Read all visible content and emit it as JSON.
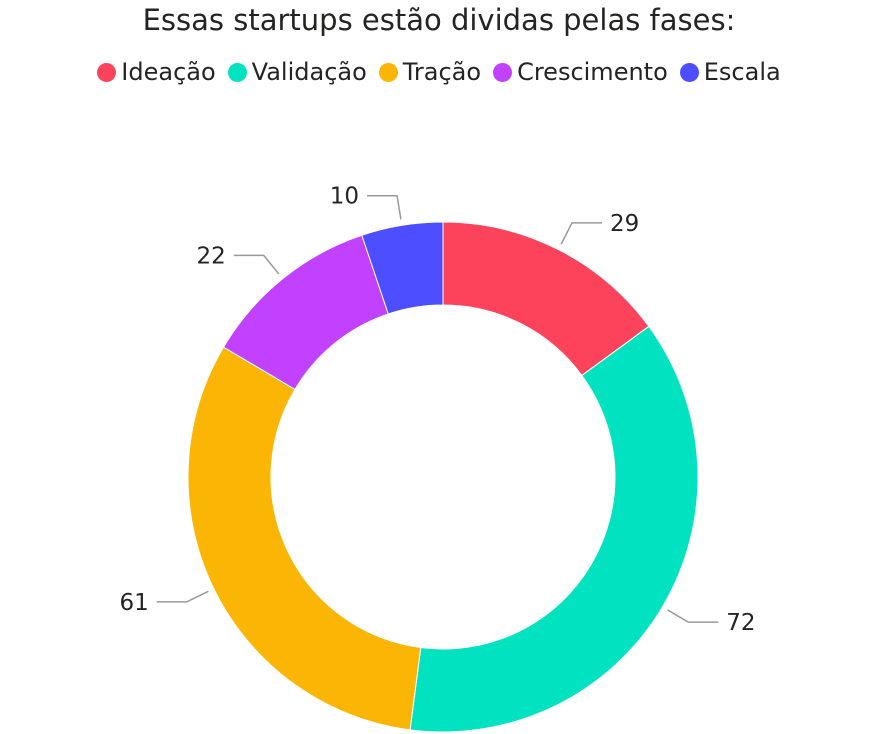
{
  "chart_data": {
    "type": "pie",
    "title": "Essas startups estão dividas pelas fases:",
    "categories": [
      "Ideação",
      "Validação",
      "Tração",
      "Crescimento",
      "Escala"
    ],
    "values": [
      29,
      72,
      61,
      22,
      10
    ],
    "colors": [
      "#FD425B",
      "#01E3C0",
      "#FBB505",
      "#C241FF",
      "#4C4EFF"
    ],
    "donut": true,
    "legend_position": "top-center",
    "data_labels": [
      "29",
      "72",
      "61",
      "22",
      "10"
    ]
  }
}
